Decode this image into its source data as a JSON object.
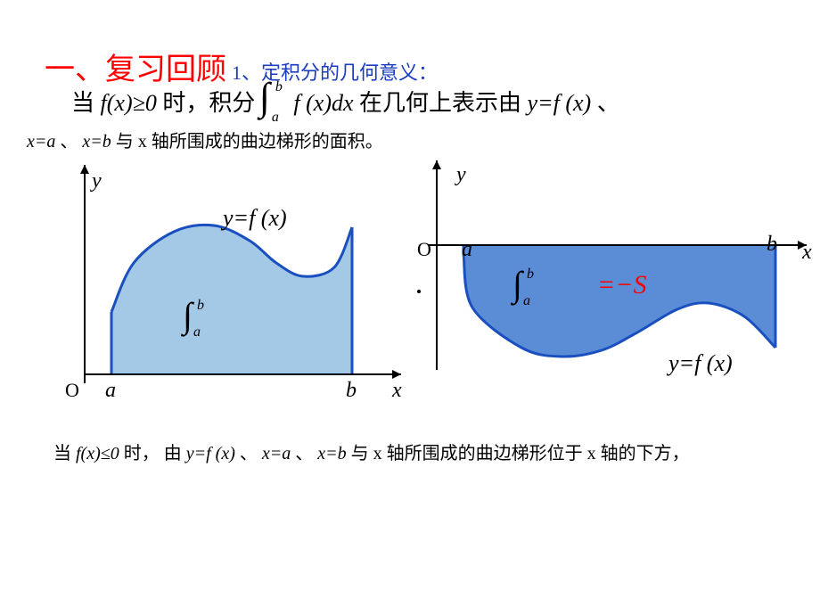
{
  "title": {
    "main": "一、复习回顾",
    "sub": "1、定积分的几何意义："
  },
  "body_line": {
    "prefix": "当 ",
    "fx_ge_0": "f(x)≥0",
    "mid1": " 时，积分 ",
    "integral": {
      "a": "a",
      "b": "b",
      "integrand": "f (x)dx"
    },
    "mid2": " 在几何上表示由 ",
    "yfx": "y=f (x)",
    "tail": "、"
  },
  "small_line": {
    "xa": "x=a",
    "sep1": "、",
    "xb": "x=b",
    "tail": "与 x 轴所围成的曲边梯形的面积。"
  },
  "left_plot": {
    "y_label": "y",
    "x_label": "x",
    "origin": "O",
    "a_label": "a",
    "b_label": "b",
    "curve_label": "y=f (x)",
    "fill_color": "#a3c9e6",
    "stroke_color": "#1a4fbf",
    "axis_color": "#000000",
    "x_range": [
      0,
      400
    ],
    "y_range": [
      0,
      260
    ],
    "a_x": 70,
    "b_x": 340,
    "baseline_y": 240,
    "curve_points": [
      [
        70,
        170
      ],
      [
        95,
        115
      ],
      [
        140,
        80
      ],
      [
        185,
        73
      ],
      [
        225,
        90
      ],
      [
        255,
        115
      ],
      [
        285,
        130
      ],
      [
        320,
        120
      ],
      [
        340,
        75
      ]
    ],
    "integral": {
      "a": "a",
      "b": "b"
    }
  },
  "right_plot": {
    "y_label": "y",
    "x_label": "x",
    "origin": "O",
    "a_label": "a",
    "b_label": "b",
    "curve_label": "y=f (x)",
    "fill_color": "#5b8dd6",
    "stroke_color": "#1a4fbf",
    "axis_color": "#000000",
    "neg_s_label": "=−S",
    "x_range": [
      0,
      440
    ],
    "y_range": [
      0,
      260
    ],
    "a_x": 50,
    "b_x": 400,
    "baseline_y": 100,
    "curve_points": [
      [
        50,
        110
      ],
      [
        60,
        170
      ],
      [
        115,
        215
      ],
      [
        160,
        225
      ],
      [
        205,
        218
      ],
      [
        245,
        198
      ],
      [
        290,
        172
      ],
      [
        325,
        165
      ],
      [
        365,
        180
      ],
      [
        400,
        215
      ]
    ],
    "integral": {
      "a": "a",
      "b": "b"
    }
  },
  "bottom_line": {
    "prefix": "当",
    "fx_le_0": "f(x)≤0",
    "mid": "时， 由",
    "yfx": "y=f (x)",
    "sep1": "、",
    "xa": "x=a",
    "sep2": "、",
    "xb": "x=b",
    "tail": "与 x 轴所围成的曲边梯形位于 x 轴的下方，"
  },
  "colors": {
    "title_main": "#ff0000",
    "title_sub": "#1a3dbf",
    "neg_s": "#ff0000"
  }
}
